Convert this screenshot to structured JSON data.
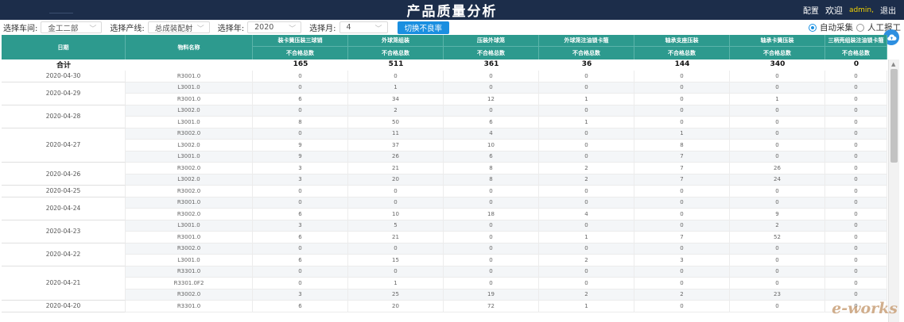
{
  "header": {
    "title": "产品质量分析",
    "config_label": "配置",
    "welcome_label": "欢迎",
    "username": "admin,",
    "logout_label": "退出"
  },
  "filters": {
    "workshop_label": "选择车间:",
    "workshop_value": "金工二部",
    "line_label": "选择产线:",
    "line_value": "总成装配射",
    "year_label": "选择年:",
    "year_value": "2020",
    "month_label": "选择月:",
    "month_value": "4",
    "toggle_button": "切换不良率",
    "radio_auto": "自动采集",
    "radio_manual": "人工报工",
    "selected_mode": "auto"
  },
  "table": {
    "date_header": "日期",
    "material_header": "物料名称",
    "station_headers": [
      "装卡簧压装三球销",
      "外球笼组装",
      "压装外球笼",
      "外球笼注油锁卡箍",
      "轴承支座压装",
      "轴承卡簧压装",
      "三柄壳组装注油锁卡箍"
    ],
    "sub_header": "不合格总数",
    "total_label": "合计",
    "totals": [
      "165",
      "511",
      "361",
      "36",
      "144",
      "340",
      "0"
    ],
    "groups": [
      {
        "date": "2020-04-30",
        "rows": [
          {
            "material": "R3001.0",
            "values": [
              "0",
              "0",
              "0",
              "0",
              "0",
              "0",
              "0"
            ]
          }
        ]
      },
      {
        "date": "2020-04-29",
        "rows": [
          {
            "material": "L3001.0",
            "values": [
              "0",
              "1",
              "0",
              "0",
              "0",
              "0",
              "0"
            ]
          },
          {
            "material": "R3001.0",
            "values": [
              "6",
              "34",
              "12",
              "1",
              "0",
              "1",
              "0"
            ]
          }
        ]
      },
      {
        "date": "2020-04-28",
        "rows": [
          {
            "material": "L3002.0",
            "values": [
              "0",
              "2",
              "0",
              "0",
              "0",
              "0",
              "0"
            ]
          },
          {
            "material": "L3001.0",
            "values": [
              "8",
              "50",
              "6",
              "1",
              "0",
              "0",
              "0"
            ]
          }
        ]
      },
      {
        "date": "2020-04-27",
        "rows": [
          {
            "material": "R3002.0",
            "values": [
              "0",
              "11",
              "4",
              "0",
              "1",
              "0",
              "0"
            ]
          },
          {
            "material": "L3002.0",
            "values": [
              "9",
              "37",
              "10",
              "0",
              "8",
              "0",
              "0"
            ]
          },
          {
            "material": "L3001.0",
            "values": [
              "9",
              "26",
              "6",
              "0",
              "7",
              "0",
              "0"
            ]
          }
        ]
      },
      {
        "date": "2020-04-26",
        "rows": [
          {
            "material": "R3002.0",
            "values": [
              "3",
              "21",
              "8",
              "2",
              "7",
              "26",
              "0"
            ]
          },
          {
            "material": "L3002.0",
            "values": [
              "3",
              "20",
              "8",
              "2",
              "7",
              "24",
              "0"
            ]
          }
        ]
      },
      {
        "date": "2020-04-25",
        "rows": [
          {
            "material": "R3002.0",
            "values": [
              "0",
              "0",
              "0",
              "0",
              "0",
              "0",
              "0"
            ]
          }
        ]
      },
      {
        "date": "2020-04-24",
        "rows": [
          {
            "material": "R3001.0",
            "values": [
              "0",
              "0",
              "0",
              "0",
              "0",
              "0",
              "0"
            ]
          },
          {
            "material": "R3002.0",
            "values": [
              "6",
              "10",
              "18",
              "4",
              "0",
              "9",
              "0"
            ]
          }
        ]
      },
      {
        "date": "2020-04-23",
        "rows": [
          {
            "material": "L3001.0",
            "values": [
              "3",
              "5",
              "0",
              "0",
              "0",
              "2",
              "0"
            ]
          },
          {
            "material": "R3001.0",
            "values": [
              "6",
              "21",
              "0",
              "1",
              "7",
              "52",
              "0"
            ]
          }
        ]
      },
      {
        "date": "2020-04-22",
        "rows": [
          {
            "material": "R3002.0",
            "values": [
              "0",
              "0",
              "0",
              "0",
              "0",
              "0",
              "0"
            ]
          },
          {
            "material": "L3001.0",
            "values": [
              "6",
              "15",
              "0",
              "2",
              "3",
              "0",
              "0"
            ]
          }
        ]
      },
      {
        "date": "2020-04-21",
        "rows": [
          {
            "material": "R3301.0",
            "values": [
              "0",
              "0",
              "0",
              "0",
              "0",
              "0",
              "0"
            ]
          },
          {
            "material": "R3301.0F2",
            "values": [
              "0",
              "1",
              "0",
              "0",
              "0",
              "0",
              "0"
            ]
          },
          {
            "material": "R3002.0",
            "values": [
              "3",
              "25",
              "19",
              "2",
              "2",
              "23",
              "0"
            ]
          }
        ]
      },
      {
        "date": "2020-04-20",
        "rows": [
          {
            "material": "R3301.0",
            "values": [
              "6",
              "20",
              "72",
              "1",
              "0",
              "0",
              "0"
            ]
          }
        ]
      }
    ]
  },
  "icons": {
    "cloud_button": "cloud-icon",
    "select_arrow": "chevron-down-icon",
    "scroll_up": "scroll-up-arrow-icon"
  },
  "watermark": "e-works",
  "colors": {
    "header_bg": "#1c2d4a",
    "table_header_bg": "#2d9a8e",
    "accent": "#1a8fe0",
    "username": "#f2d200"
  }
}
